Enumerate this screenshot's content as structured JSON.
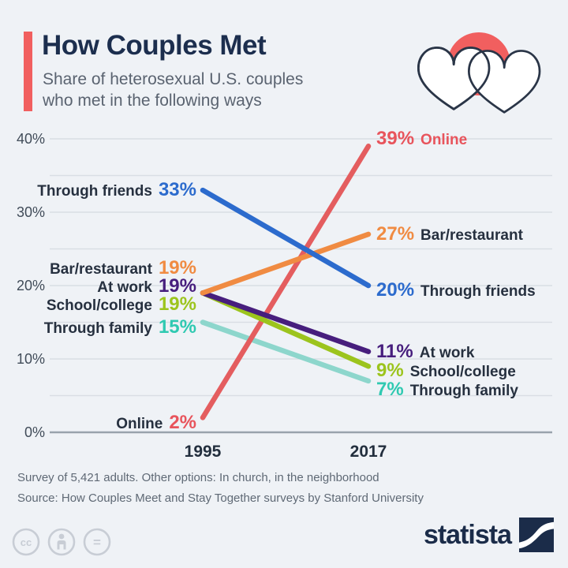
{
  "header": {
    "title": "How Couples Met",
    "subtitle_lines": [
      "Share of heterosexual U.S. couples",
      "who met in the following ways"
    ],
    "accent_color": "#f15f5f",
    "icon": {
      "name": "two-hearts-icon",
      "circle_color": "#f15f5f",
      "outline_color": "#2a3547",
      "heart_fill": "#ffffff"
    }
  },
  "chart_data": {
    "type": "line",
    "subtype": "slope",
    "title": "How Couples Met",
    "x_labels": [
      "1995",
      "2017"
    ],
    "ylim": [
      0,
      40
    ],
    "grid": true,
    "grid_step": 5,
    "grid_color": "#d9dee4",
    "axis_color": "#99a2ac",
    "ytick_values": [
      0,
      10,
      20,
      30,
      40
    ],
    "ytick_suffix": "%",
    "legend": "inline-labels-both-ends",
    "series": [
      {
        "name": "Through family",
        "values": [
          15,
          7
        ],
        "line_color": "#8dd6cc",
        "value_color": "#2fc9b1",
        "right_name_color": "#26303f",
        "left_label_dy": 6,
        "right_label_dy": 11
      },
      {
        "name": "Online",
        "values": [
          2,
          39
        ],
        "line_color": "#e45d5f",
        "value_color": "#e8545c",
        "right_name_color": "#e8545c",
        "left_label_dy": 7,
        "right_label_dy": -9
      },
      {
        "name": "School/college",
        "values": [
          19,
          9
        ],
        "line_color": "#9cc41d",
        "value_color": "#9cc41d",
        "right_name_color": "#26303f",
        "left_label_dy": 15,
        "right_label_dy": 6
      },
      {
        "name": "At work",
        "values": [
          19,
          11
        ],
        "line_color": "#471e7d",
        "value_color": "#471e7d",
        "right_name_color": "#26303f",
        "left_label_dy": -8,
        "right_label_dy": 0
      },
      {
        "name": "Bar/restaurant",
        "values": [
          19,
          27
        ],
        "line_color": "#f08b42",
        "value_color": "#f08b42",
        "right_name_color": "#26303f",
        "left_label_dy": -31,
        "right_label_dy": 0
      },
      {
        "name": "Through friends",
        "values": [
          33,
          20
        ],
        "line_color": "#2c6bcd",
        "value_color": "#2c6bcd",
        "right_name_color": "#26303f",
        "left_label_dy": 0,
        "right_label_dy": 6
      }
    ]
  },
  "footer": {
    "note": "Survey of 5,421 adults. Other options: In church, in the neighborhood",
    "source": "Source: How Couples Meet and Stay Together surveys by Stanford University"
  },
  "branding": {
    "wordmark": "statista",
    "logo_color": "#1b2c49",
    "license_color": "#c8cdd5",
    "cc_glyph": "cc",
    "nd_glyph": "="
  }
}
